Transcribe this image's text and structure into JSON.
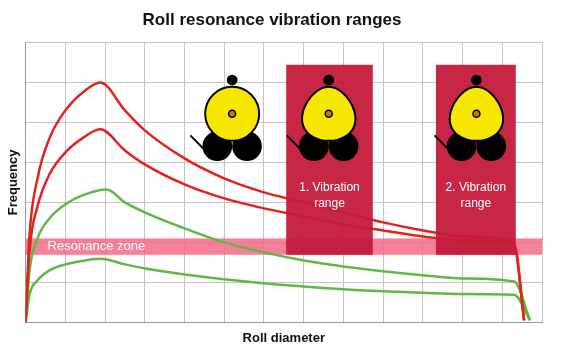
{
  "chart_data": {
    "type": "line",
    "title": "Roll resonance vibration ranges",
    "x_label": "Roll diameter",
    "y_label": "Frequency",
    "xlim": [
      0,
      13
    ],
    "ylim": [
      0,
      7
    ],
    "xticks": [
      0,
      1,
      2,
      3,
      4,
      5,
      6,
      7,
      8,
      9,
      10,
      11,
      12,
      13
    ],
    "yticks": [
      0,
      1,
      2,
      3,
      4,
      5,
      6,
      7
    ],
    "grid": true,
    "tick_labels": false,
    "series": [
      {
        "color": "#e3231b",
        "x": [
          0,
          0.1,
          0.3,
          0.6,
          1.0,
          1.5,
          1.88,
          2.5,
          3,
          4,
          5,
          6,
          7,
          8,
          9,
          10,
          11,
          12.3,
          12.55
        ],
        "values": [
          0,
          2.2,
          3.6,
          4.6,
          5.3,
          5.8,
          6.0,
          5.3,
          4.8,
          4.1,
          3.6,
          3.25,
          3.0,
          2.75,
          2.5,
          2.3,
          2.15,
          1.97,
          0.05
        ]
      },
      {
        "color": "#e3231b",
        "x": [
          0,
          0.1,
          0.3,
          0.6,
          1.0,
          1.5,
          1.88,
          2.5,
          3,
          4,
          5,
          6,
          7,
          8,
          9,
          10,
          11,
          12.3,
          12.55
        ],
        "values": [
          0,
          1.8,
          2.9,
          3.7,
          4.25,
          4.65,
          4.83,
          4.3,
          3.95,
          3.45,
          3.1,
          2.85,
          2.65,
          2.45,
          2.3,
          2.15,
          2.05,
          1.9,
          0.05
        ]
      },
      {
        "color": "#5cb947",
        "x": [
          0,
          0.1,
          0.3,
          0.6,
          1.0,
          1.5,
          2.04,
          2.5,
          3,
          4,
          5,
          6,
          7,
          8,
          9,
          10,
          11,
          12.3,
          12.7
        ],
        "values": [
          0,
          1.3,
          2.1,
          2.6,
          2.95,
          3.2,
          3.32,
          3.0,
          2.75,
          2.35,
          2.0,
          1.75,
          1.55,
          1.4,
          1.28,
          1.18,
          1.1,
          1.02,
          0.05
        ]
      },
      {
        "color": "#5cb947",
        "x": [
          0,
          0.1,
          0.3,
          0.6,
          1.0,
          1.5,
          1.88,
          2.5,
          3,
          4,
          5,
          6,
          7,
          8,
          9,
          10,
          11,
          12.3,
          12.7
        ],
        "values": [
          0,
          0.7,
          1.05,
          1.3,
          1.45,
          1.55,
          1.59,
          1.45,
          1.35,
          1.2,
          1.08,
          0.98,
          0.9,
          0.83,
          0.78,
          0.74,
          0.71,
          0.69,
          0.05
        ]
      }
    ],
    "resonance_zone": {
      "text": "Resonance zone",
      "y": [
        1.69,
        2.1
      ],
      "color": "#f26b86"
    },
    "vibration_ranges": [
      {
        "text": "1. Vibration range",
        "x": [
          6.56,
          8.74
        ],
        "y": [
          1.69,
          6.44
        ],
        "color": "#c41a3b"
      },
      {
        "text": "2. Vibration range",
        "x": [
          10.33,
          12.34
        ],
        "y": [
          1.69,
          6.44
        ],
        "color": "#c41a3b"
      }
    ]
  }
}
